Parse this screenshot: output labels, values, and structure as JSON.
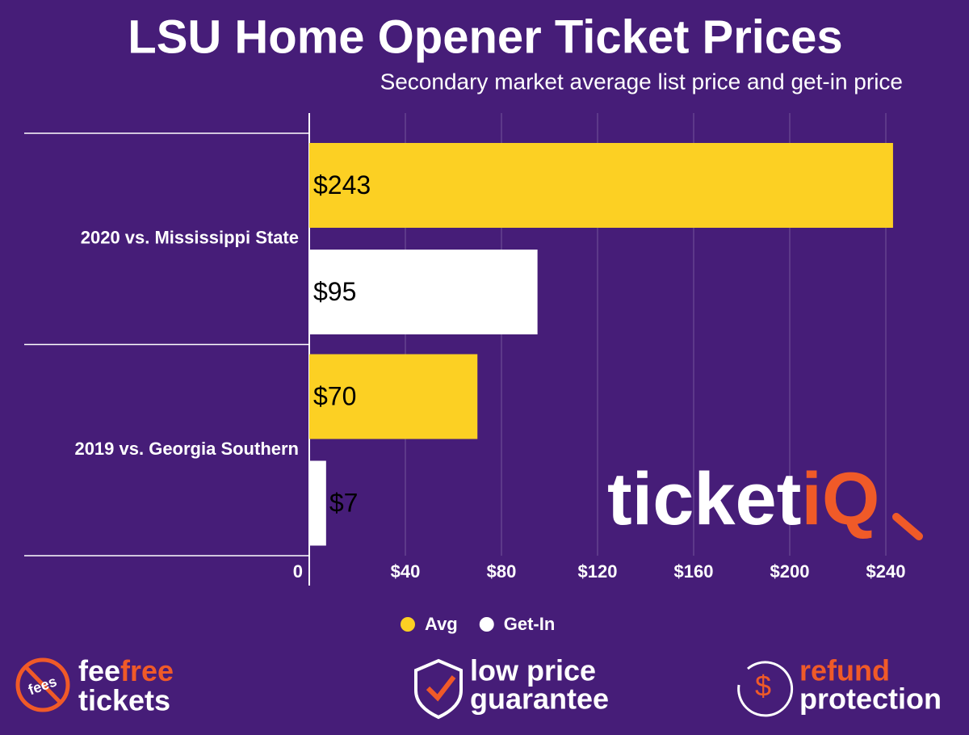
{
  "chart_data": {
    "type": "hbar",
    "title": "LSU Home Opener Ticket Prices",
    "subtitle": "Secondary market average list price and get-in price",
    "categories": [
      "2020 vs. Mississippi State",
      "2019 vs. Georgia Southern"
    ],
    "series": [
      {
        "name": "Avg",
        "color": "#fcd023",
        "values": [
          243,
          70
        ],
        "value_labels": [
          "$243",
          "$70"
        ]
      },
      {
        "name": "Get-In",
        "color": "#ffffff",
        "values": [
          95,
          7
        ],
        "value_labels": [
          "$95",
          "$7"
        ]
      }
    ],
    "xlim": [
      0,
      250
    ],
    "xticks": [
      0,
      {
        "value": 40,
        "label": "$40"
      },
      {
        "value": 80,
        "label": "$80"
      },
      {
        "value": 120,
        "label": "$120"
      },
      {
        "value": 160,
        "label": "$160"
      },
      {
        "value": 200,
        "label": "$200"
      },
      {
        "value": 240,
        "label": "$240"
      }
    ],
    "grid": true,
    "legend": "bottom"
  },
  "logo": {
    "part1": "ticket",
    "part2": "iQ"
  },
  "badges": [
    {
      "icon": "fees",
      "line1a": "fee",
      "line1b": "free",
      "line2": "tickets"
    },
    {
      "line1": "low price",
      "line2": "guarantee"
    },
    {
      "icon": "$",
      "line1": "refund",
      "line2": "protection"
    }
  ]
}
